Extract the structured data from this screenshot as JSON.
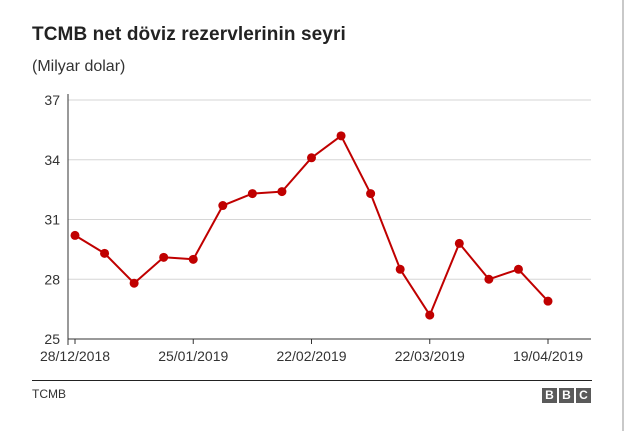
{
  "header": {
    "title": "TCMB net döviz rezervlerinin seyri",
    "subtitle": "(Milyar dolar)"
  },
  "footer": {
    "source": "TCMB",
    "logo_letters": [
      "B",
      "B",
      "C"
    ]
  },
  "colors": {
    "series": "#c00000",
    "grid": "#d6d6d6",
    "axis": "#333333"
  },
  "chart_data": {
    "type": "line",
    "title": "TCMB net döviz rezervlerinin seyri",
    "subtitle": "(Milyar dolar)",
    "xlabel": "",
    "ylabel": "",
    "ylim": [
      25,
      37
    ],
    "yticks": [
      37,
      34,
      31,
      28,
      25
    ],
    "xtick_labels": [
      {
        "label": "28/12/2018",
        "index": 0
      },
      {
        "label": "25/01/2019",
        "index": 4
      },
      {
        "label": "22/02/2019",
        "index": 8
      },
      {
        "label": "22/03/2019",
        "index": 12
      },
      {
        "label": "19/04/2019",
        "index": 16
      }
    ],
    "grid": true,
    "legend": "none",
    "series": [
      {
        "x": [
          "28/12/2018",
          "04/01/2019",
          "11/01/2019",
          "18/01/2019",
          "25/01/2019",
          "01/02/2019",
          "08/02/2019",
          "15/02/2019",
          "22/02/2019",
          "01/03/2019",
          "08/03/2019",
          "15/03/2019",
          "22/03/2019",
          "29/03/2019",
          "05/04/2019",
          "12/04/2019",
          "19/04/2019"
        ],
        "values": [
          30.2,
          29.3,
          27.8,
          29.1,
          29.0,
          31.7,
          32.3,
          32.4,
          34.1,
          35.2,
          32.3,
          28.5,
          26.2,
          29.8,
          28.0,
          28.5,
          26.9
        ]
      }
    ]
  }
}
